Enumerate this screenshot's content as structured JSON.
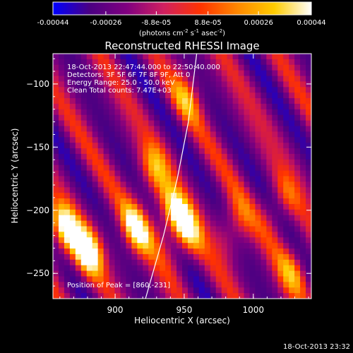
{
  "colorbar": {
    "tick_labels": [
      "-0.00044",
      "-0.00026",
      "-8.8e-05",
      "8.8e-05",
      "0.00026",
      "0.00044"
    ],
    "tick_values": [
      -0.00044,
      -0.00026,
      -8.8e-05,
      8.8e-05,
      0.00026,
      0.00044
    ],
    "range": [
      -0.00044,
      0.00044
    ],
    "unit_main": "(photons cm",
    "unit_exp1": "-2",
    "unit_s": " s",
    "unit_exp2": "-1",
    "unit_asec": " asec",
    "unit_exp3": "-2",
    "unit_close": ")",
    "colors": [
      "#0000ff",
      "#4b0082",
      "#800080",
      "#d02060",
      "#ff3300",
      "#ff8800",
      "#ffcc00",
      "#ffffff"
    ]
  },
  "chart_data": {
    "type": "heatmap",
    "title": "Reconstructed RHESSI Image",
    "xlabel": "Heliocentric X (arcsec)",
    "ylabel": "Heliocentric Y (arcsec)",
    "xlim": [
      855,
      1042
    ],
    "ylim": [
      -270,
      -76
    ],
    "x_ticks": [
      900,
      950,
      1000
    ],
    "y_ticks": [
      -100,
      -150,
      -200,
      -250
    ],
    "x_tick_labels": [
      "900",
      "950",
      "1000"
    ],
    "y_tick_labels": [
      "−100",
      "−150",
      "−200",
      "−250"
    ],
    "annotations": [
      "18-Oct-2013 22:47:44.000 to 22:50:40.000",
      "Detectors: 3F 5F 6F 7F 8F 9F, Att 0",
      "Energy Range: 25.0 - 50.0 keV",
      "Clean    Total counts: 7.47E+03"
    ],
    "peak_label": "Position of Peak = [860,-231]",
    "peak_position": [
      860,
      -231
    ],
    "limb_curve": [
      [
        922,
        -270
      ],
      [
        935,
        -220
      ],
      [
        945,
        -175
      ],
      [
        953,
        -130
      ],
      [
        959,
        -76
      ]
    ],
    "bright_sources": [
      {
        "x": 862,
        "y": -218,
        "intensity": 1.0
      },
      {
        "x": 880,
        "y": -232,
        "intensity": 0.95
      },
      {
        "x": 915,
        "y": -215,
        "intensity": 0.75
      },
      {
        "x": 940,
        "y": -205,
        "intensity": 0.9
      },
      {
        "x": 950,
        "y": -220,
        "intensity": 0.85
      },
      {
        "x": 927,
        "y": -170,
        "intensity": 0.6
      },
      {
        "x": 952,
        "y": -110,
        "intensity": 0.45
      },
      {
        "x": 985,
        "y": -215,
        "intensity": 0.6
      },
      {
        "x": 1020,
        "y": -195,
        "intensity": 0.5
      },
      {
        "x": 1030,
        "y": -245,
        "intensity": 0.55
      }
    ]
  },
  "footer": {
    "timestamp": "18-Oct-2013 23:32"
  }
}
